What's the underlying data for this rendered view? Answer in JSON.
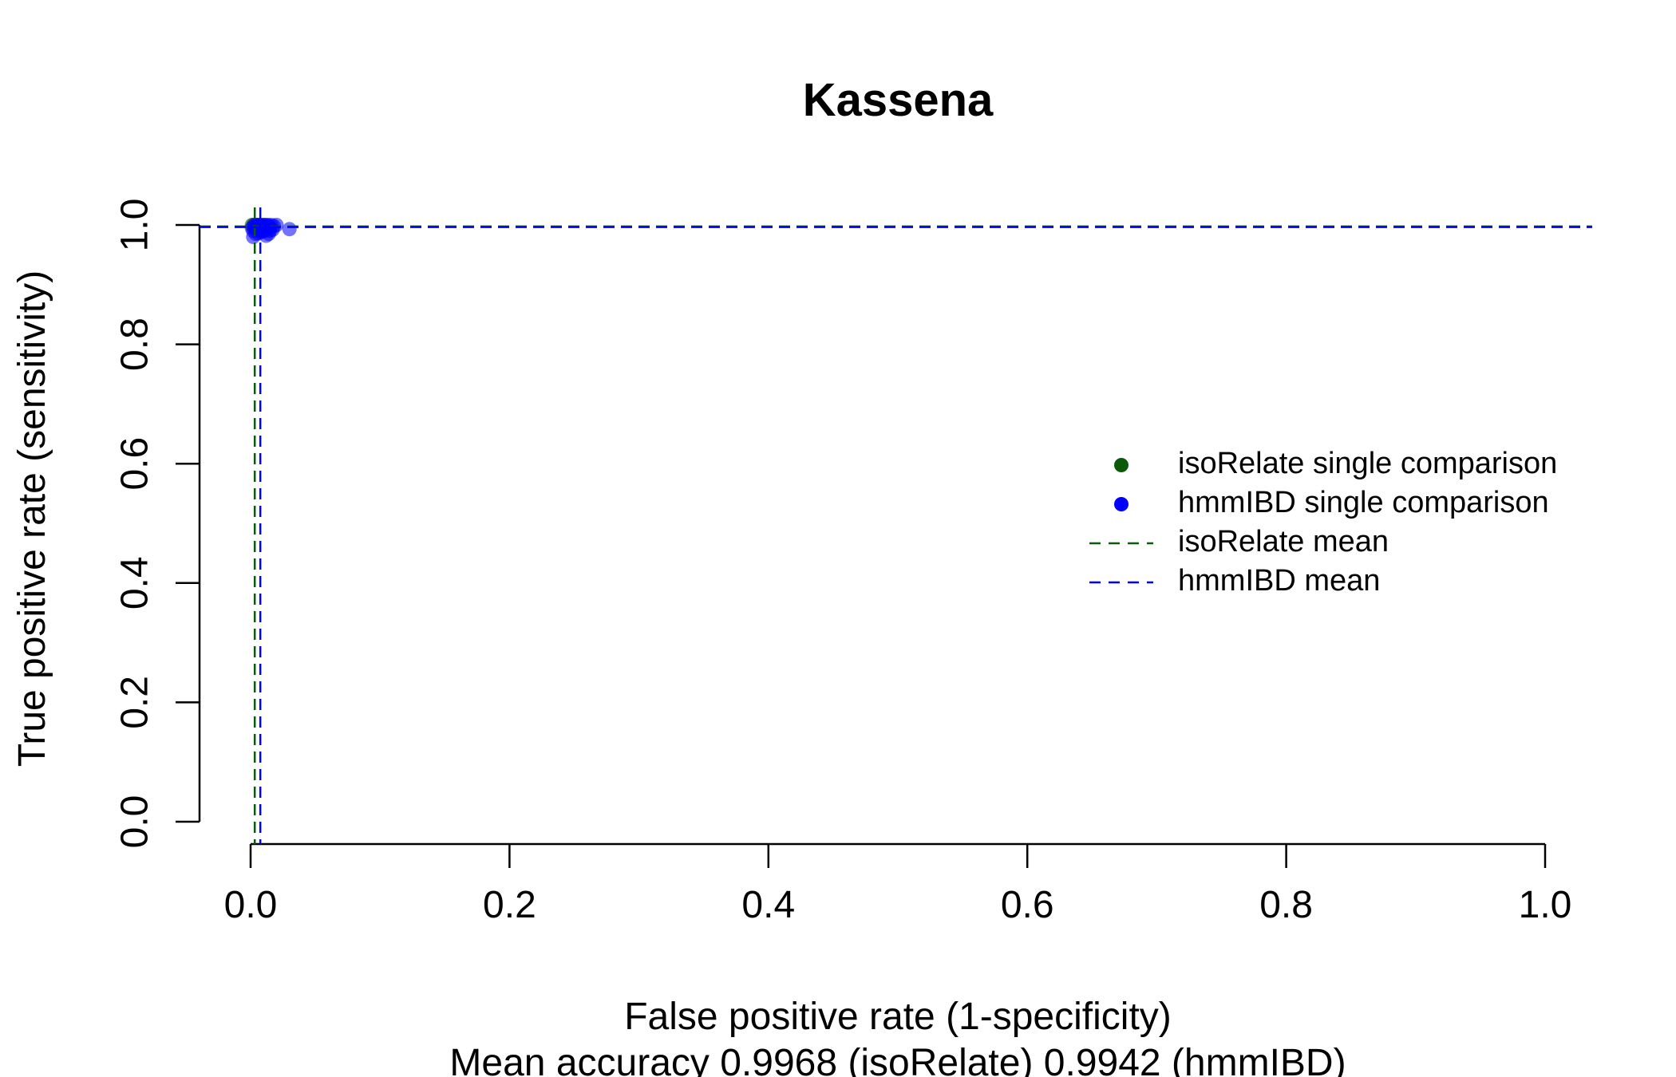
{
  "chart_data": {
    "type": "scatter",
    "title": "Kassena",
    "xlabel": "False positive rate (1-specificity)",
    "subtitle": "Mean accuracy 0.9968 (isoRelate) 0.9942 (hmmIBD)",
    "ylabel": "True positive rate (sensitivity)",
    "xlim": [
      0,
      1
    ],
    "ylim": [
      0,
      1
    ],
    "x_ticks": [
      "0.0",
      "0.2",
      "0.4",
      "0.6",
      "0.8",
      "1.0"
    ],
    "y_ticks": [
      "0.0",
      "0.2",
      "0.4",
      "0.6",
      "0.8",
      "1.0"
    ],
    "grid": false,
    "legend_position": "right",
    "series": [
      {
        "name": "isoRelate single comparison",
        "kind": "points",
        "color": "#0a5a0a",
        "points": [
          [
            0.001,
            1.0
          ],
          [
            0.002,
            1.0
          ],
          [
            0.003,
            0.998
          ],
          [
            0.004,
            1.0
          ],
          [
            0.005,
            0.999
          ],
          [
            0.006,
            1.0
          ],
          [
            0.003,
            0.995
          ],
          [
            0.008,
            1.0
          ],
          [
            0.002,
            0.997
          ],
          [
            0.005,
            0.996
          ]
        ]
      },
      {
        "name": "hmmIBD single comparison",
        "kind": "points",
        "color": "#0000ff",
        "points": [
          [
            0.001,
            0.995
          ],
          [
            0.002,
            0.99
          ],
          [
            0.003,
            1.0
          ],
          [
            0.004,
            0.985
          ],
          [
            0.005,
            0.998
          ],
          [
            0.006,
            0.992
          ],
          [
            0.007,
            1.0
          ],
          [
            0.008,
            0.988
          ],
          [
            0.009,
            0.996
          ],
          [
            0.01,
            1.0
          ],
          [
            0.011,
            0.99
          ],
          [
            0.012,
            0.997
          ],
          [
            0.013,
            1.0
          ],
          [
            0.014,
            0.985
          ],
          [
            0.015,
            0.995
          ],
          [
            0.016,
            1.0
          ],
          [
            0.017,
            0.992
          ],
          [
            0.018,
            0.998
          ],
          [
            0.02,
            1.0
          ],
          [
            0.002,
            0.98
          ],
          [
            0.005,
            1.0
          ],
          [
            0.008,
            0.994
          ],
          [
            0.011,
            1.0
          ],
          [
            0.014,
            0.999
          ],
          [
            0.03,
            0.993
          ],
          [
            0.012,
            0.982
          ],
          [
            0.006,
            0.986
          ],
          [
            0.009,
            0.99
          ],
          [
            0.015,
            0.99
          ],
          [
            0.004,
            0.998
          ]
        ]
      },
      {
        "name": "isoRelate mean",
        "kind": "crosshair",
        "color": "#0a5a0a",
        "x": 0.0032,
        "y": 0.9975
      },
      {
        "name": "hmmIBD mean",
        "kind": "crosshair",
        "color": "#0000ff",
        "x": 0.0075,
        "y": 0.9965
      }
    ]
  }
}
